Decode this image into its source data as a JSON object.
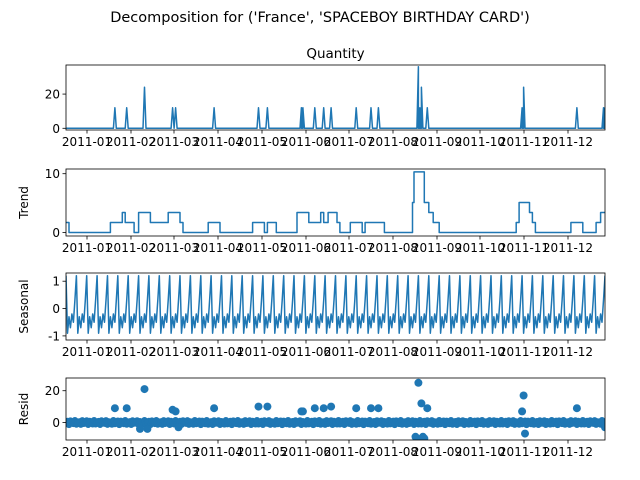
{
  "figure": {
    "title": "Decomposition for ('France', 'SPACEBOY BIRTHDAY CARD')"
  },
  "colors": {
    "series": "#1f77b4",
    "axis": "#000000",
    "background": "#ffffff"
  },
  "x_tick_labels": [
    "2011-01",
    "2011-02",
    "2011-03",
    "2011-04",
    "2011-05",
    "2011-06",
    "2011-07",
    "2011-08",
    "2011-09",
    "2011-10",
    "2011-11",
    "2011-12"
  ],
  "chart_data": [
    {
      "type": "line",
      "title": "Quantity",
      "ylabel": "",
      "ylim": [
        -1,
        37
      ],
      "yticks": [
        0,
        20
      ],
      "x_range": [
        "2010-12-10",
        "2011-12-09"
      ],
      "spikes": [
        {
          "x": "2011-01-12",
          "y": 12
        },
        {
          "x": "2011-01-20",
          "y": 12
        },
        {
          "x": "2011-02-01",
          "y": 24
        },
        {
          "x": "2011-02-20",
          "y": 12
        },
        {
          "x": "2011-02-22",
          "y": 12
        },
        {
          "x": "2011-03-20",
          "y": 12
        },
        {
          "x": "2011-04-19",
          "y": 12
        },
        {
          "x": "2011-04-25",
          "y": 12
        },
        {
          "x": "2011-05-18",
          "y": 12
        },
        {
          "x": "2011-05-19",
          "y": 12
        },
        {
          "x": "2011-05-27",
          "y": 12
        },
        {
          "x": "2011-06-02",
          "y": 12
        },
        {
          "x": "2011-06-07",
          "y": 12
        },
        {
          "x": "2011-06-24",
          "y": 12
        },
        {
          "x": "2011-07-04",
          "y": 12
        },
        {
          "x": "2011-07-09",
          "y": 12
        },
        {
          "x": "2011-08-05",
          "y": 36
        },
        {
          "x": "2011-08-06",
          "y": 12
        },
        {
          "x": "2011-08-07",
          "y": 24
        },
        {
          "x": "2011-08-11",
          "y": 12
        },
        {
          "x": "2011-10-14",
          "y": 12
        },
        {
          "x": "2011-10-15",
          "y": 24
        },
        {
          "x": "2011-11-20",
          "y": 12
        },
        {
          "x": "2011-12-08",
          "y": 12
        },
        {
          "x": "2011-12-09",
          "y": 12
        }
      ],
      "baseline": 0
    },
    {
      "type": "line",
      "title": "",
      "ylabel": "Trend",
      "ylim": [
        -0.6,
        10.8
      ],
      "yticks": [
        0,
        10
      ],
      "x_range": [
        "2010-12-10",
        "2011-12-09"
      ],
      "steps": [
        {
          "x": "2010-12-10",
          "y": 1.7
        },
        {
          "x": "2010-12-12",
          "y": 0
        },
        {
          "x": "2011-01-09",
          "y": 1.7
        },
        {
          "x": "2011-01-17",
          "y": 3.4
        },
        {
          "x": "2011-01-19",
          "y": 1.7
        },
        {
          "x": "2011-01-25",
          "y": 0
        },
        {
          "x": "2011-01-28",
          "y": 3.4
        },
        {
          "x": "2011-02-05",
          "y": 1.7
        },
        {
          "x": "2011-02-15",
          "y": 1.7
        },
        {
          "x": "2011-02-17",
          "y": 3.4
        },
        {
          "x": "2011-02-25",
          "y": 1.7
        },
        {
          "x": "2011-02-27",
          "y": 0
        },
        {
          "x": "2011-03-16",
          "y": 1.7
        },
        {
          "x": "2011-03-24",
          "y": 0
        },
        {
          "x": "2011-04-15",
          "y": 1.7
        },
        {
          "x": "2011-04-23",
          "y": 0
        },
        {
          "x": "2011-04-25",
          "y": 1.7
        },
        {
          "x": "2011-05-01",
          "y": 0
        },
        {
          "x": "2011-05-15",
          "y": 3.4
        },
        {
          "x": "2011-05-23",
          "y": 1.7
        },
        {
          "x": "2011-05-31",
          "y": 3.4
        },
        {
          "x": "2011-06-02",
          "y": 1.7
        },
        {
          "x": "2011-06-05",
          "y": 3.4
        },
        {
          "x": "2011-06-11",
          "y": 1.7
        },
        {
          "x": "2011-06-13",
          "y": 0
        },
        {
          "x": "2011-06-20",
          "y": 1.7
        },
        {
          "x": "2011-06-28",
          "y": 0
        },
        {
          "x": "2011-06-30",
          "y": 1.7
        },
        {
          "x": "2011-07-13",
          "y": 0
        },
        {
          "x": "2011-07-20",
          "y": 0
        },
        {
          "x": "2011-08-01",
          "y": 5.1
        },
        {
          "x": "2011-08-02",
          "y": 10.3
        },
        {
          "x": "2011-08-09",
          "y": 5.1
        },
        {
          "x": "2011-08-12",
          "y": 3.4
        },
        {
          "x": "2011-08-15",
          "y": 1.7
        },
        {
          "x": "2011-08-19",
          "y": 0
        },
        {
          "x": "2011-10-10",
          "y": 1.7
        },
        {
          "x": "2011-10-12",
          "y": 5.1
        },
        {
          "x": "2011-10-19",
          "y": 3.4
        },
        {
          "x": "2011-10-21",
          "y": 1.7
        },
        {
          "x": "2011-10-23",
          "y": 0
        },
        {
          "x": "2011-11-16",
          "y": 1.7
        },
        {
          "x": "2011-11-24",
          "y": 0
        },
        {
          "x": "2011-12-03",
          "y": 1.7
        },
        {
          "x": "2011-12-06",
          "y": 3.4
        }
      ]
    },
    {
      "type": "line",
      "title": "",
      "ylabel": "Seasonal",
      "ylim": [
        -1.15,
        1.3
      ],
      "yticks": [
        -1,
        0,
        1
      ],
      "x_range": [
        "2010-12-10",
        "2011-12-09"
      ],
      "period_days": 7,
      "weekly_pattern": [
        1.2,
        -0.9,
        -0.3,
        -0.7,
        -0.2,
        -0.5,
        0.3
      ]
    },
    {
      "type": "scatter",
      "title": "",
      "ylabel": "Resid",
      "ylim": [
        -11,
        28
      ],
      "yticks": [
        0,
        20
      ],
      "x_range": [
        "2010-12-10",
        "2011-12-09"
      ],
      "points": [
        {
          "x": "2011-01-12",
          "y": 9
        },
        {
          "x": "2011-01-20",
          "y": 9
        },
        {
          "x": "2011-02-01",
          "y": 21
        },
        {
          "x": "2011-02-20",
          "y": 8
        },
        {
          "x": "2011-02-22",
          "y": 7
        },
        {
          "x": "2011-03-20",
          "y": 9
        },
        {
          "x": "2011-04-19",
          "y": 10
        },
        {
          "x": "2011-04-25",
          "y": 10
        },
        {
          "x": "2011-05-18",
          "y": 7
        },
        {
          "x": "2011-05-19",
          "y": 7
        },
        {
          "x": "2011-05-27",
          "y": 9
        },
        {
          "x": "2011-06-02",
          "y": 9
        },
        {
          "x": "2011-06-07",
          "y": 10
        },
        {
          "x": "2011-06-24",
          "y": 9
        },
        {
          "x": "2011-07-04",
          "y": 9
        },
        {
          "x": "2011-07-09",
          "y": 9
        },
        {
          "x": "2011-08-05",
          "y": 25
        },
        {
          "x": "2011-08-07",
          "y": 12
        },
        {
          "x": "2011-08-11",
          "y": 9
        },
        {
          "x": "2011-08-03",
          "y": -9
        },
        {
          "x": "2011-08-04",
          "y": -10
        },
        {
          "x": "2011-08-08",
          "y": -9
        },
        {
          "x": "2011-08-09",
          "y": -10
        },
        {
          "x": "2011-10-14",
          "y": 7
        },
        {
          "x": "2011-10-15",
          "y": 17
        },
        {
          "x": "2011-10-16",
          "y": -7
        },
        {
          "x": "2011-11-20",
          "y": 9
        },
        {
          "x": "2011-02-03",
          "y": -4
        },
        {
          "x": "2011-01-29",
          "y": -4
        },
        {
          "x": "2011-02-24",
          "y": -3
        },
        {
          "x": "2011-12-09",
          "y": -3
        }
      ],
      "baseline_noise_amplitude": 1.5
    }
  ]
}
